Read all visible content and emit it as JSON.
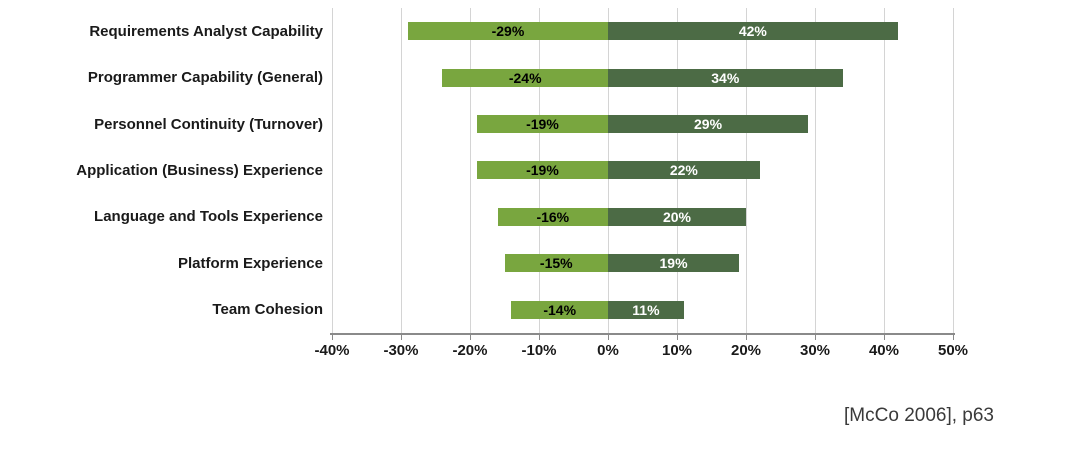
{
  "chart_data": {
    "type": "bar",
    "orientation": "horizontal",
    "title": "",
    "categories": [
      "Requirements Analyst Capability",
      "Programmer Capability (General)",
      "Personnel Continuity (Turnover)",
      "Application (Business) Experience",
      "Language and Tools Experience",
      "Platform Experience",
      "Team Cohesion"
    ],
    "series": [
      {
        "name": "negative",
        "values": [
          -29,
          -24,
          -19,
          -19,
          -16,
          -15,
          -14
        ],
        "color": "#79A63F",
        "label_color": "#000000"
      },
      {
        "name": "positive",
        "values": [
          42,
          34,
          29,
          22,
          20,
          19,
          11
        ],
        "color": "#4C6B45",
        "label_color": "#FFFFFF"
      }
    ],
    "value_suffix": "%",
    "x_ticks": [
      "-40%",
      "-30%",
      "-20%",
      "-10%",
      "0%",
      "10%",
      "20%",
      "30%",
      "40%",
      "50%"
    ],
    "xlim": [
      -40,
      50
    ],
    "grid": true,
    "legend": "none",
    "colors": {
      "gridline": "#d4d4d4",
      "axis": "#8a8a8a",
      "label_text": "#1a1a1a"
    }
  },
  "caption": "[McCo 2006], p63"
}
